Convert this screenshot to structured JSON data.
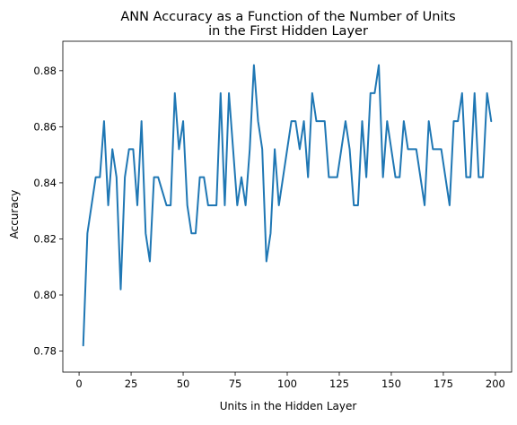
{
  "chart_data": {
    "type": "line",
    "title_line1": "ANN Accuracy as a Function of the Number of Units",
    "title_line2": "in the First Hidden Layer",
    "xlabel": "Units in the Hidden Layer",
    "ylabel": "Accuracy",
    "xlim": [
      -7.8,
      207.8
    ],
    "ylim": [
      0.7725,
      0.8905
    ],
    "xticks": [
      0,
      25,
      50,
      75,
      100,
      125,
      150,
      175,
      200
    ],
    "yticks": [
      0.78,
      0.8,
      0.82,
      0.84,
      0.86,
      0.88
    ],
    "ytick_labels": [
      "0.78",
      "0.80",
      "0.82",
      "0.84",
      "0.86",
      "0.88"
    ],
    "grid": false,
    "line_color": "#1f77b4",
    "series": [
      {
        "x": [
          2,
          4,
          6,
          8,
          10,
          12,
          14,
          16,
          18,
          20,
          22,
          24,
          26,
          28,
          30,
          32,
          34,
          36,
          38,
          40,
          42,
          44,
          46,
          48,
          50,
          52,
          54,
          56,
          58,
          60,
          62,
          64,
          66,
          68,
          70,
          72,
          74,
          76,
          78,
          80,
          82,
          84,
          86,
          88,
          90,
          92,
          94,
          96,
          98,
          100,
          102,
          104,
          106,
          108,
          110,
          112,
          114,
          116,
          118,
          120,
          122,
          124,
          126,
          128,
          130,
          132,
          134,
          136,
          138,
          140,
          142,
          144,
          146,
          148,
          150,
          152,
          154,
          156,
          158,
          160,
          162,
          164,
          166,
          168,
          170,
          172,
          174,
          176,
          178,
          180,
          182,
          184,
          186,
          188,
          190,
          192,
          194,
          196,
          198
        ],
        "values": [
          0.782,
          0.822,
          0.832,
          0.842,
          0.842,
          0.862,
          0.832,
          0.852,
          0.842,
          0.802,
          0.842,
          0.852,
          0.852,
          0.832,
          0.862,
          0.822,
          0.812,
          0.842,
          0.842,
          0.837,
          0.832,
          0.832,
          0.872,
          0.852,
          0.862,
          0.832,
          0.822,
          0.822,
          0.842,
          0.842,
          0.832,
          0.832,
          0.832,
          0.872,
          0.832,
          0.872,
          0.852,
          0.832,
          0.842,
          0.832,
          0.852,
          0.882,
          0.862,
          0.852,
          0.812,
          0.822,
          0.852,
          0.832,
          0.842,
          0.852,
          0.862,
          0.862,
          0.852,
          0.862,
          0.842,
          0.872,
          0.862,
          0.862,
          0.862,
          0.842,
          0.842,
          0.842,
          0.852,
          0.862,
          0.852,
          0.832,
          0.832,
          0.862,
          0.842,
          0.872,
          0.872,
          0.882,
          0.842,
          0.862,
          0.852,
          0.842,
          0.842,
          0.862,
          0.852,
          0.852,
          0.852,
          0.842,
          0.832,
          0.862,
          0.852,
          0.852,
          0.852,
          0.842,
          0.832,
          0.862,
          0.862,
          0.872,
          0.842,
          0.842,
          0.872,
          0.842,
          0.842,
          0.872,
          0.862
        ]
      }
    ]
  }
}
